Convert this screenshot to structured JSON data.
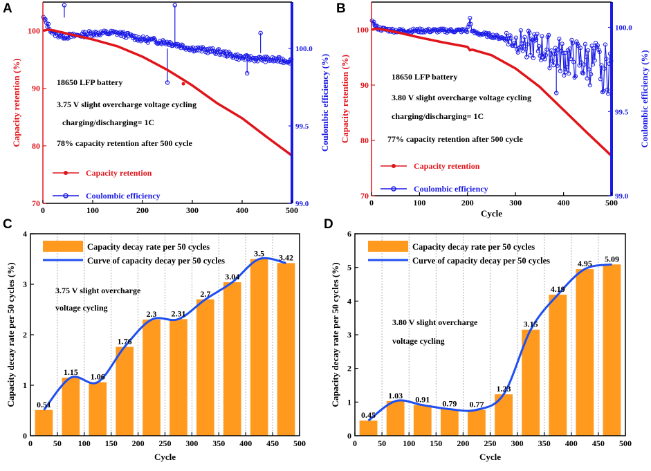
{
  "colors": {
    "red": "#e0151b",
    "blue": "#1a1ae6",
    "bar": "#ff9a1f",
    "curve": "#1f4ff0"
  },
  "chart_data": [
    {
      "panel": "A",
      "type": "line",
      "title": "",
      "xlabel": "",
      "ylabel_left": "Capacity retention (%)",
      "ylabel_right": "Coulombic efficiency (%)",
      "xlim": [
        0,
        500
      ],
      "ylim_left": [
        70,
        105
      ],
      "ylim_right": [
        99.0,
        100.3
      ],
      "xticks": [
        "0",
        "100",
        "200",
        "300",
        "400",
        "500"
      ],
      "yticks_left": [
        "70",
        "80",
        "90",
        "100"
      ],
      "yticks_right": [
        "99.0",
        "99.5",
        "100.0"
      ],
      "legend": [
        "Capacity retention",
        "Coulombic efficiency"
      ],
      "annotations": [
        "18650  LFP battery",
        "3.75 V  slight overcharge  voltage cycling",
        "charging/discharging=  1C",
        "78% capacity retention after 500 cycle"
      ],
      "series": [
        {
          "name": "Capacity retention",
          "axis": "left",
          "x": [
            0,
            10,
            20,
            40,
            60,
            100,
            150,
            200,
            250,
            280,
            300,
            350,
            400,
            450,
            500
          ],
          "y": [
            100.0,
            100.2,
            100.1,
            99.7,
            99.3,
            98.5,
            97.3,
            95.5,
            93.2,
            91.6,
            90.5,
            87.4,
            84.8,
            81.5,
            78.3
          ]
        },
        {
          "name": "Coulombic efficiency",
          "axis": "right",
          "x": [
            0,
            10,
            20,
            40,
            60,
            100,
            150,
            200,
            250,
            300,
            350,
            400,
            450,
            500
          ],
          "y": [
            100.2,
            100.15,
            100.1,
            100.08,
            100.08,
            100.1,
            100.1,
            100.06,
            100.04,
            100.0,
            99.98,
            99.94,
            99.93,
            99.92
          ]
        }
      ]
    },
    {
      "panel": "B",
      "type": "line",
      "title": "",
      "xlabel": "Cycle",
      "ylabel_left": "Capacity retention (%)",
      "ylabel_right": "Coulombic efficiency (%)",
      "xlim": [
        0,
        500
      ],
      "ylim_left": [
        70,
        105
      ],
      "ylim_right": [
        99.0,
        100.15
      ],
      "xticks": [
        "0",
        "100",
        "200",
        "300",
        "400",
        "500"
      ],
      "yticks_left": [
        "70",
        "80",
        "90",
        "100"
      ],
      "yticks_right": [
        "99.0",
        "99.5",
        "100.0"
      ],
      "legend": [
        "Capacity retention",
        "Coulombic efficiency"
      ],
      "annotations": [
        "18650  LFP battery",
        "3.80 V  slight overcharge  voltage cycling",
        "charging/discharging= 1C",
        "77% capacity retention after 500 cycle"
      ],
      "series": [
        {
          "name": "Capacity retention",
          "axis": "left",
          "x": [
            0,
            10,
            20,
            50,
            100,
            150,
            200,
            205,
            210,
            250,
            300,
            350,
            400,
            450,
            500
          ],
          "y": [
            100.0,
            100.2,
            100.1,
            99.6,
            98.6,
            97.7,
            96.9,
            96.3,
            96.4,
            95.4,
            93.0,
            89.7,
            85.5,
            81.3,
            77.2
          ]
        },
        {
          "name": "Coulombic efficiency",
          "axis": "right",
          "x": [
            0,
            10,
            20,
            50,
            100,
            150,
            200,
            205,
            210,
            250,
            300,
            350,
            400,
            450,
            500
          ],
          "y": [
            100.05,
            100.0,
            99.99,
            99.98,
            99.98,
            99.98,
            99.98,
            100.05,
            99.97,
            99.95,
            99.92,
            99.88,
            99.82,
            99.79,
            99.75
          ]
        }
      ]
    },
    {
      "panel": "C",
      "type": "bar",
      "title": "",
      "xlabel": "Cycle",
      "ylabel": "Capacity decay rate  per 50 cycles (%)",
      "xlim": [
        0,
        500
      ],
      "ylim": [
        0,
        4
      ],
      "xticks": [
        "0",
        "50",
        "100",
        "150",
        "200",
        "250",
        "300",
        "350",
        "400",
        "450",
        "500"
      ],
      "yticks": [
        "0",
        "1",
        "2",
        "3",
        "4"
      ],
      "legend": [
        "Capacity decay rate  per 50 cycles",
        "Curve of capacity decay per 50 cycles"
      ],
      "annotations": [
        "3.75 V  slight overcharge",
        "voltage cycling"
      ],
      "x": [
        25,
        75,
        125,
        175,
        225,
        275,
        325,
        375,
        425,
        475
      ],
      "values": [
        0.51,
        1.15,
        1.06,
        1.76,
        2.3,
        2.31,
        2.7,
        3.04,
        3.5,
        3.42
      ],
      "value_labels": [
        "0.51",
        "1.15",
        "1.06",
        "1.76",
        "2.3",
        "2.31",
        "2.7",
        "3.04",
        "3.5",
        "3.42"
      ],
      "curve": {
        "x": [
          25,
          75,
          125,
          175,
          225,
          275,
          325,
          375,
          425,
          475
        ],
        "y": [
          0.51,
          1.15,
          1.06,
          1.76,
          2.3,
          2.31,
          2.7,
          3.04,
          3.5,
          3.42
        ]
      }
    },
    {
      "panel": "D",
      "type": "bar",
      "title": "",
      "xlabel": "Cycle",
      "ylabel": "Capacity decay rate  per 50 cycles (%)",
      "xlim": [
        0,
        500
      ],
      "ylim": [
        0,
        6
      ],
      "xticks": [
        "0",
        "50",
        "100",
        "150",
        "200",
        "250",
        "300",
        "350",
        "400",
        "450",
        "500"
      ],
      "yticks": [
        "0",
        "1",
        "2",
        "3",
        "4",
        "5",
        "6"
      ],
      "legend": [
        "Capacity decay rate  per 50 cycles",
        "Curve of capacity decay per 50 cycles"
      ],
      "annotations": [
        "3.80 V  slight overcharge",
        "voltage cycling"
      ],
      "x": [
        25,
        75,
        125,
        175,
        225,
        275,
        325,
        375,
        425,
        475
      ],
      "values": [
        0.45,
        1.03,
        0.91,
        0.79,
        0.77,
        1.23,
        3.15,
        4.19,
        4.95,
        5.09
      ],
      "value_labels": [
        "0.45",
        "1.03",
        "0.91",
        "0.79",
        "0.77",
        "1.23",
        "3.15",
        "4.19",
        "4.95",
        "5.09"
      ],
      "curve": {
        "x": [
          25,
          75,
          125,
          175,
          225,
          275,
          325,
          375,
          425,
          475
        ],
        "y": [
          0.45,
          1.03,
          0.91,
          0.79,
          0.77,
          1.23,
          3.15,
          4.19,
          4.95,
          5.09
        ]
      }
    }
  ]
}
